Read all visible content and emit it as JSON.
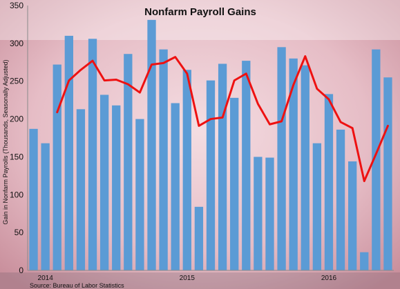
{
  "chart_data": {
    "type": "bar",
    "title": "Nonfarm Payroll Gains",
    "ylabel": "Gain in Nonfarm Payrolls (Thousands, Seasonally Adjusted)",
    "source": "Source: Bureau of Labor Statistics",
    "ylim": [
      0,
      350
    ],
    "yticks": [
      0,
      50,
      100,
      150,
      200,
      250,
      300,
      350
    ],
    "x_labels": [
      {
        "label": "2014",
        "index": 1
      },
      {
        "label": "2015",
        "index": 13
      },
      {
        "label": "2016",
        "index": 25
      }
    ],
    "grid": false,
    "colors": {
      "bars": "#5b9bd5",
      "line": "#ee1111",
      "background": "#e7c2c9"
    },
    "series": [
      {
        "type": "bar",
        "values": [
          187,
          168,
          272,
          310,
          213,
          306,
          232,
          218,
          286,
          200,
          331,
          292,
          221,
          265,
          84,
          251,
          273,
          228,
          277,
          150,
          149,
          295,
          280,
          271,
          168,
          233,
          186,
          144,
          24,
          292,
          255
        ]
      },
      {
        "type": "line",
        "start_index": 2,
        "values": [
          209,
          251,
          265,
          277,
          251,
          252,
          246,
          235,
          272,
          274,
          282,
          260,
          191,
          200,
          202,
          251,
          260,
          220,
          193,
          197,
          245,
          283,
          240,
          226,
          196,
          188,
          118,
          154,
          191
        ]
      }
    ]
  }
}
